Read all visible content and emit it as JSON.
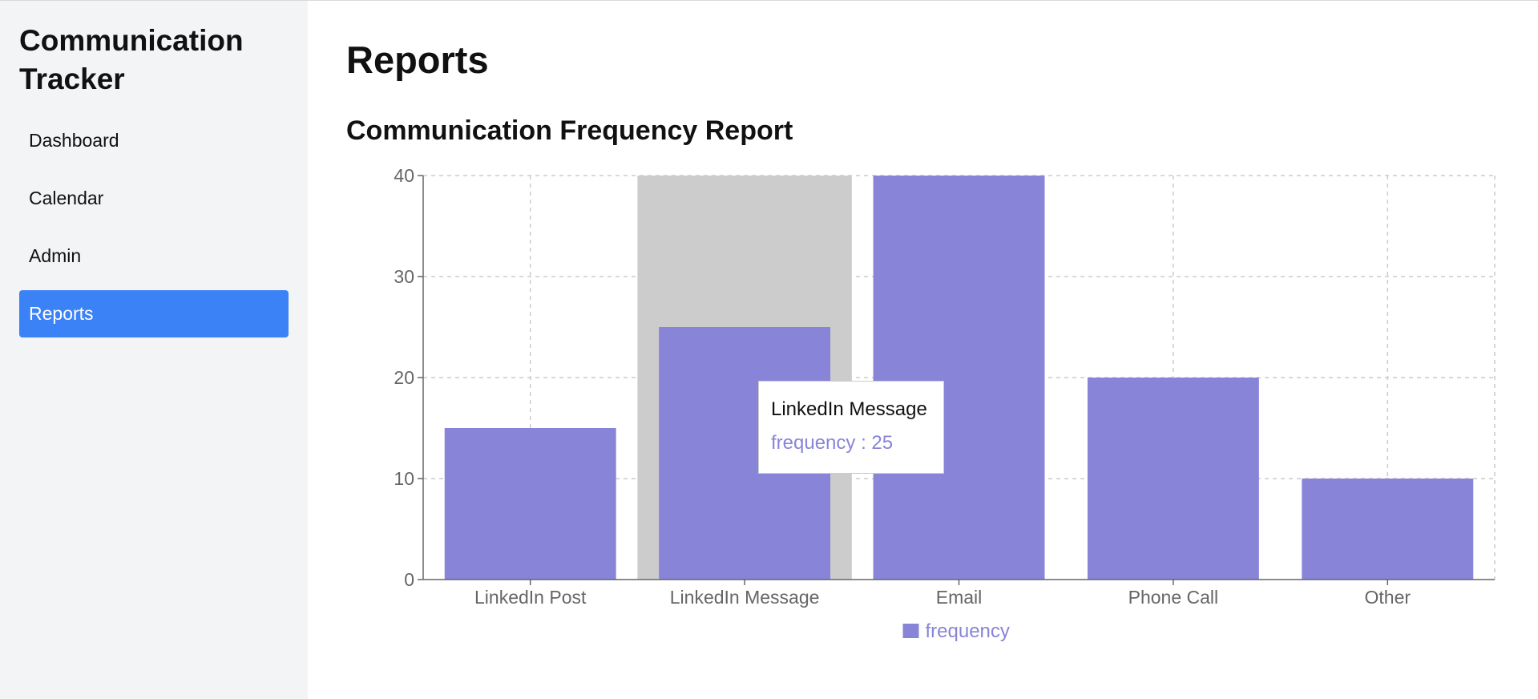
{
  "app": {
    "title": "Communication Tracker"
  },
  "sidebar": {
    "items": [
      {
        "label": "Dashboard",
        "active": false
      },
      {
        "label": "Calendar",
        "active": false
      },
      {
        "label": "Admin",
        "active": false
      },
      {
        "label": "Reports",
        "active": true
      }
    ]
  },
  "page": {
    "title": "Reports",
    "section_title": "Communication Frequency Report"
  },
  "tooltip": {
    "category": "LinkedIn Message",
    "series": "frequency",
    "separator": " : ",
    "value": "25"
  },
  "colors": {
    "accent": "#3b82f6",
    "bar": "#8884d8",
    "highlight": "#cccccc",
    "grid": "#cccccc",
    "axis_text": "#666666"
  },
  "chart_data": {
    "type": "bar",
    "title": "Communication Frequency Report",
    "xlabel": "",
    "ylabel": "",
    "categories": [
      "LinkedIn Post",
      "LinkedIn Message",
      "Email",
      "Phone Call",
      "Other"
    ],
    "series": [
      {
        "name": "frequency",
        "values": [
          15,
          25,
          40,
          20,
          10
        ],
        "color": "#8884d8"
      }
    ],
    "ylim": [
      0,
      40
    ],
    "y_ticks": [
      0,
      10,
      20,
      30,
      40
    ],
    "grid": true,
    "grid_style": "dashed",
    "legend": "bottom-center",
    "highlighted_category": "LinkedIn Message"
  }
}
